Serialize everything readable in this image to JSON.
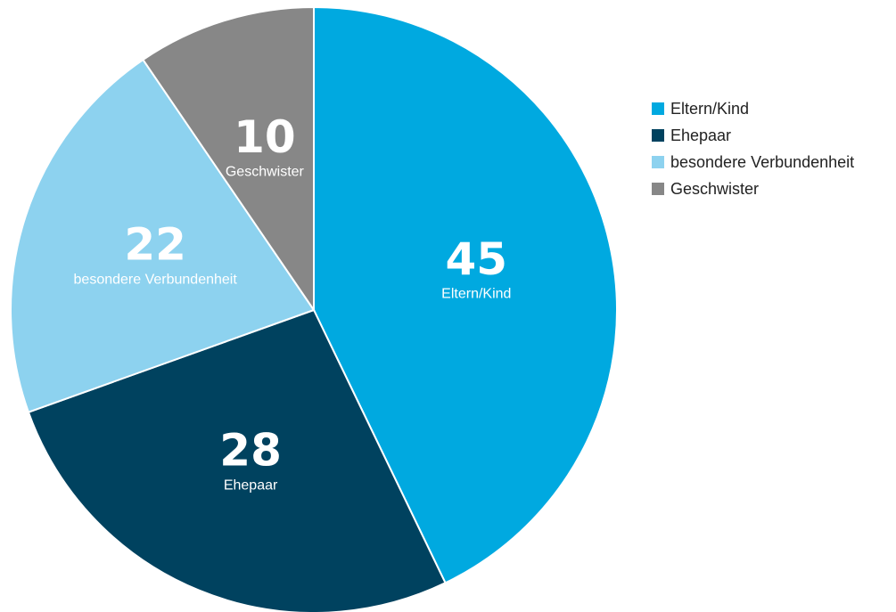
{
  "chart_data": {
    "type": "pie",
    "categories": [
      "Eltern/Kind",
      "Ehepaar",
      "besondere Verbundenheit",
      "Geschwister"
    ],
    "values": [
      45,
      28,
      22,
      10
    ],
    "colors": [
      "#00a9e0",
      "#00425f",
      "#8dd2ef",
      "#878787"
    ],
    "legend": "right"
  }
}
